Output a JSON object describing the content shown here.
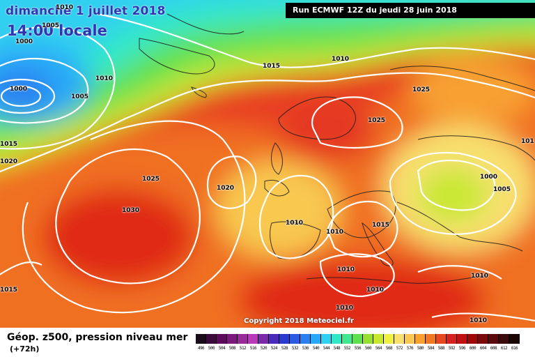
{
  "header": {
    "date": "dimanche 1 juillet 2018",
    "time": "14:00 locale",
    "run": "Run ECMWF 12Z du jeudi 28 juin 2018"
  },
  "copyright": "Copyright 2018 Meteociel.fr",
  "legend": {
    "title": "Géop. z500, pression niveau mer",
    "lead": "(+72h)",
    "scale": [
      {
        "value": "496",
        "color": "#1a0a1a"
      },
      {
        "value": "500",
        "color": "#3a0a3a"
      },
      {
        "value": "504",
        "color": "#5c0a5c"
      },
      {
        "value": "508",
        "color": "#7a1a7a"
      },
      {
        "value": "512",
        "color": "#9a2a9a"
      },
      {
        "value": "516",
        "color": "#b83ab8"
      },
      {
        "value": "520",
        "color": "#7a2aa8"
      },
      {
        "value": "524",
        "color": "#4a2ab8"
      },
      {
        "value": "528",
        "color": "#2a3ad0"
      },
      {
        "value": "532",
        "color": "#2a5ae0"
      },
      {
        "value": "536",
        "color": "#2a80f0"
      },
      {
        "value": "540",
        "color": "#2aa8f8"
      },
      {
        "value": "544",
        "color": "#30d0f0"
      },
      {
        "value": "548",
        "color": "#30e8c8"
      },
      {
        "value": "552",
        "color": "#40e890"
      },
      {
        "value": "556",
        "color": "#60e050"
      },
      {
        "value": "560",
        "color": "#98e030"
      },
      {
        "value": "564",
        "color": "#c8e830"
      },
      {
        "value": "568",
        "color": "#f0f040"
      },
      {
        "value": "572",
        "color": "#f8e070"
      },
      {
        "value": "576",
        "color": "#f8c850"
      },
      {
        "value": "580",
        "color": "#f8a030"
      },
      {
        "value": "584",
        "color": "#f07820"
      },
      {
        "value": "588",
        "color": "#e84820"
      },
      {
        "value": "592",
        "color": "#d82020"
      },
      {
        "value": "596",
        "color": "#c01010"
      },
      {
        "value": "600",
        "color": "#a00808"
      },
      {
        "value": "604",
        "color": "#7a0a0a"
      },
      {
        "value": "608",
        "color": "#5a0a0a"
      },
      {
        "value": "612",
        "color": "#3a0a0a"
      },
      {
        "value": "616",
        "color": "#1a0505"
      }
    ]
  },
  "isobars": [
    {
      "label": "1010"
    },
    {
      "label": "1005"
    },
    {
      "label": "1000"
    },
    {
      "label": "1000"
    },
    {
      "label": "1010"
    },
    {
      "label": "1005"
    },
    {
      "label": "1015"
    },
    {
      "label": "1010"
    },
    {
      "label": "1025"
    },
    {
      "label": "1025"
    },
    {
      "label": "1025"
    },
    {
      "label": "1030"
    },
    {
      "label": "1020"
    },
    {
      "label": "1010"
    },
    {
      "label": "1010"
    },
    {
      "label": "1015"
    },
    {
      "label": "1000"
    },
    {
      "label": "1005"
    },
    {
      "label": "1010"
    },
    {
      "label": "1010"
    },
    {
      "label": "1010"
    },
    {
      "label": "1010"
    },
    {
      "label": "1010"
    },
    {
      "label": "1015"
    },
    {
      "label": "1020"
    },
    {
      "label": "1015"
    },
    {
      "label": "101"
    }
  ]
}
